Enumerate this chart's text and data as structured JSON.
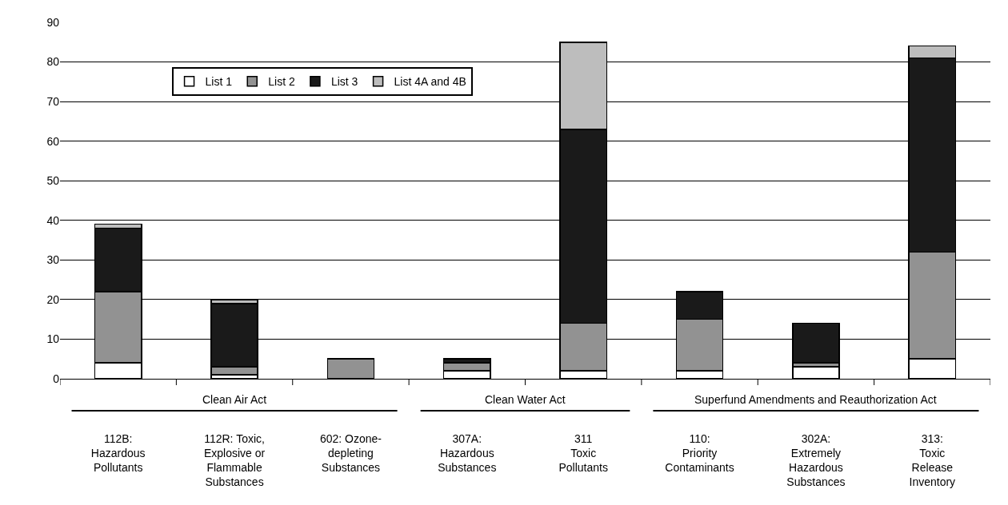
{
  "chart_data": {
    "type": "bar",
    "stacked": true,
    "categories": [
      "112B:\nHazardous\nPollutants",
      "112R: Toxic,\nExplosive or\nFlammable\nSubstances",
      "602: Ozone-\ndepleting\nSubstances",
      "307A:\nHazardous\nSubstances",
      "311\nToxic\nPollutants",
      "110:\nPriority\nContaminants",
      "302A:\nExtremely\nHazardous\nSubstances",
      "313:\nToxic\nRelease\nInventory"
    ],
    "series": [
      {
        "name": "List 1",
        "color": "#ffffff",
        "values": [
          4,
          1,
          null,
          2,
          2,
          2,
          3,
          5
        ]
      },
      {
        "name": "List 2",
        "color": "#929292",
        "values": [
          18,
          2,
          5,
          2,
          12,
          13,
          1,
          27
        ]
      },
      {
        "name": "List 3",
        "color": "#1a1a1a",
        "values": [
          16,
          16,
          null,
          1,
          49,
          7,
          10,
          49
        ]
      },
      {
        "name": "List 4A and 4B",
        "color": "#bdbdbd",
        "values": [
          1,
          1,
          null,
          null,
          22,
          null,
          null,
          3
        ]
      }
    ],
    "ylim": [
      0,
      90
    ],
    "yticks": [
      0,
      10,
      20,
      30,
      40,
      50,
      60,
      70,
      80,
      90
    ],
    "grid": "y",
    "legend": "top left",
    "annotations": [
      "Clean Air Act",
      "Clean Water Act",
      "Superfund Amendments and Reauthorization Act"
    ]
  }
}
